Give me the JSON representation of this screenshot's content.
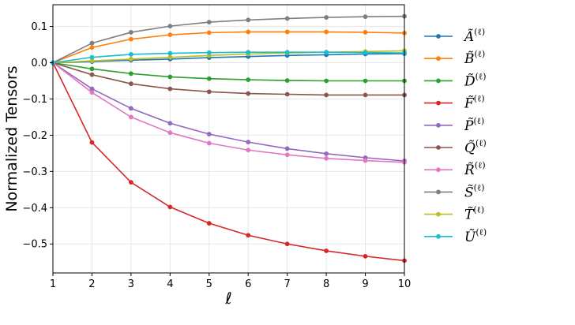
{
  "chart_data": {
    "type": "line",
    "xlabel": "ℓ",
    "ylabel": "Normalized Tensors",
    "x": [
      1,
      2,
      3,
      4,
      5,
      6,
      7,
      8,
      9,
      10
    ],
    "xlim": [
      1,
      10
    ],
    "ylim": [
      -0.58,
      0.16
    ],
    "xticks": [
      "1",
      "2",
      "3",
      "4",
      "5",
      "6",
      "7",
      "8",
      "9",
      "10"
    ],
    "yticks": [
      {
        "value": 0.1,
        "label": "0.1"
      },
      {
        "value": 0.0,
        "label": "0.0"
      },
      {
        "value": -0.1,
        "label": "−0.1"
      },
      {
        "value": -0.2,
        "label": "−0.2"
      },
      {
        "value": -0.3,
        "label": "−0.3"
      },
      {
        "value": -0.4,
        "label": "−0.4"
      },
      {
        "value": -0.5,
        "label": "−0.5"
      }
    ],
    "grid": true,
    "legend_position": "right-outside",
    "series": [
      {
        "name": "Ã(ℓ)",
        "letter": "Ã",
        "sup": "(ℓ)",
        "color": "#1f77b4",
        "values": [
          0,
          0.003,
          0.007,
          0.01,
          0.014,
          0.017,
          0.02,
          0.022,
          0.024,
          0.025
        ]
      },
      {
        "name": "B̃(ℓ)",
        "letter": "B̃",
        "sup": "(ℓ)",
        "color": "#ff7f0e",
        "values": [
          0,
          0.042,
          0.065,
          0.077,
          0.083,
          0.085,
          0.085,
          0.085,
          0.084,
          0.082
        ]
      },
      {
        "name": "D̃(ℓ)",
        "letter": "D̃",
        "sup": "(ℓ)",
        "color": "#2ca02c",
        "values": [
          0,
          -0.017,
          -0.03,
          -0.039,
          -0.044,
          -0.047,
          -0.049,
          -0.05,
          -0.05,
          -0.05
        ]
      },
      {
        "name": "F̃(ℓ)",
        "letter": "F̃",
        "sup": "(ℓ)",
        "color": "#d62728",
        "values": [
          0,
          -0.22,
          -0.33,
          -0.398,
          -0.443,
          -0.476,
          -0.5,
          -0.519,
          -0.534,
          -0.546
        ]
      },
      {
        "name": "P̃(ℓ)",
        "letter": "P̃",
        "sup": "(ℓ)",
        "color": "#9467bd",
        "values": [
          0,
          -0.072,
          -0.126,
          -0.167,
          -0.197,
          -0.219,
          -0.237,
          -0.251,
          -0.262,
          -0.271
        ]
      },
      {
        "name": "Q̃(ℓ)",
        "letter": "Q̃",
        "sup": "(ℓ)",
        "color": "#8c564b",
        "values": [
          0,
          -0.033,
          -0.058,
          -0.072,
          -0.08,
          -0.085,
          -0.087,
          -0.089,
          -0.089,
          -0.089
        ]
      },
      {
        "name": "R̃(ℓ)",
        "letter": "R̃",
        "sup": "(ℓ)",
        "color": "#e377c2",
        "values": [
          0,
          -0.082,
          -0.15,
          -0.193,
          -0.222,
          -0.241,
          -0.254,
          -0.264,
          -0.27,
          -0.275
        ]
      },
      {
        "name": "S̃(ℓ)",
        "letter": "S̃",
        "sup": "(ℓ)",
        "color": "#7f7f7f",
        "values": [
          0,
          0.054,
          0.084,
          0.101,
          0.112,
          0.118,
          0.122,
          0.125,
          0.127,
          0.128
        ]
      },
      {
        "name": "T̃(ℓ)",
        "letter": "T̃",
        "sup": "(ℓ)",
        "color": "#bcbd22",
        "values": [
          0,
          0.005,
          0.01,
          0.015,
          0.02,
          0.024,
          0.027,
          0.029,
          0.031,
          0.033
        ]
      },
      {
        "name": "Ũ(ℓ)",
        "letter": "Ũ",
        "sup": "(ℓ)",
        "color": "#17becf",
        "values": [
          0,
          0.015,
          0.023,
          0.026,
          0.028,
          0.029,
          0.029,
          0.029,
          0.028,
          0.027
        ]
      }
    ]
  }
}
